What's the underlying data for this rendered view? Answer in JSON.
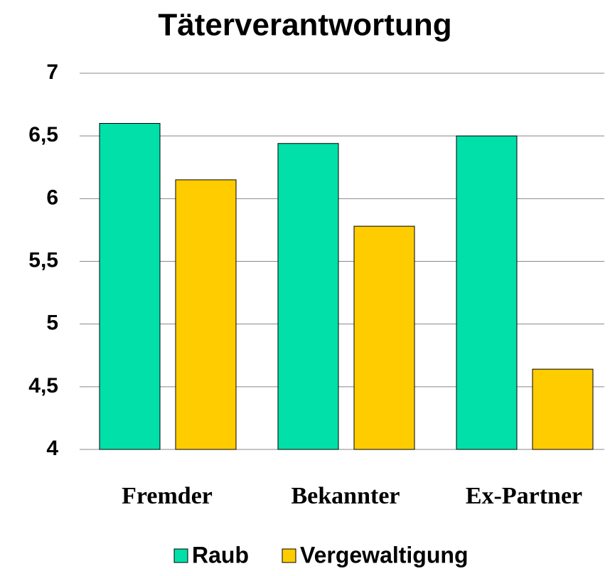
{
  "chart_data": {
    "type": "bar",
    "title": "Täterverantwortung",
    "categories": [
      "Fremder",
      "Bekannter",
      "Ex-Partner"
    ],
    "series": [
      {
        "name": "Raub",
        "color": "#00e0a8",
        "values": [
          6.6,
          6.44,
          6.5
        ]
      },
      {
        "name": "Vergewaltigung",
        "color": "#ffcc00",
        "values": [
          6.15,
          5.78,
          4.64
        ]
      }
    ],
    "ylim": [
      4,
      7
    ],
    "yticks": [
      4,
      {
        "value": 4.5,
        "label": "4,5"
      },
      5,
      {
        "value": 5.5,
        "label": "5,5"
      },
      6,
      {
        "value": 6.5,
        "label": "6,5"
      },
      7
    ],
    "grid": true,
    "legend": "bottom"
  }
}
